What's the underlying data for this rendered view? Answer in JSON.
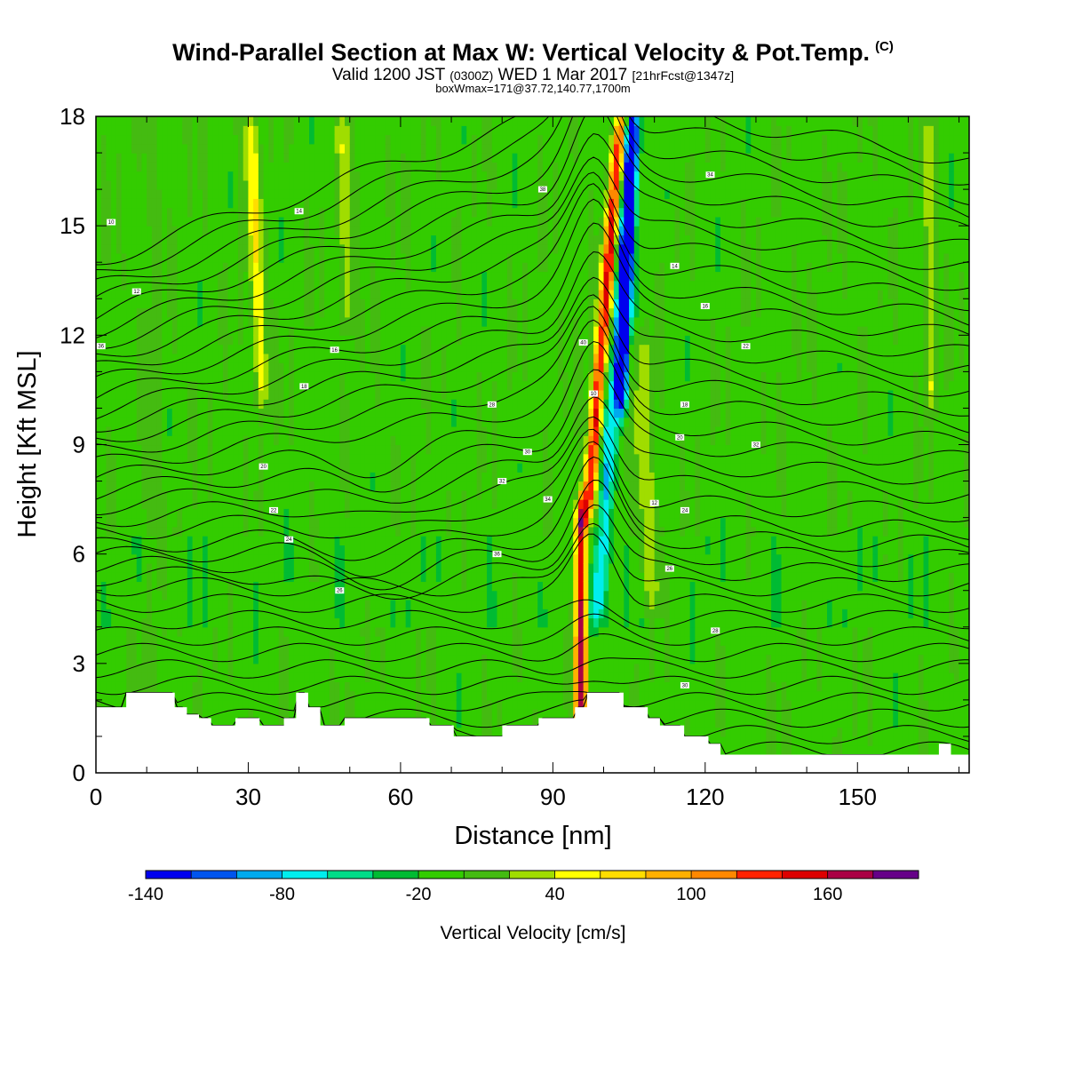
{
  "header": {
    "title": "Wind-Parallel Section at Max W: Vertical Velocity & Pot.Temp.",
    "copyright": "(C)",
    "valid_prefix": "Valid 1200 JST",
    "valid_utc": "(0300Z)",
    "valid_date": "WED 1 Mar 2017",
    "forecast": "[21hrFcst@1347z]",
    "box_info": "boxWmax=171@37.72,140.77,1700m"
  },
  "chart_data": {
    "type": "heatmap",
    "xlabel": "Distance [nm]",
    "ylabel": "Height [Kft MSL]",
    "xlim": [
      0,
      172
    ],
    "ylim": [
      0,
      18
    ],
    "xticks": [
      0,
      30,
      60,
      90,
      120,
      150
    ],
    "yticks": [
      0,
      3,
      6,
      9,
      12,
      15,
      18
    ],
    "colorbar": {
      "title": "Vertical Velocity [cm/s]",
      "levels": [
        -140,
        -120,
        -100,
        -80,
        -60,
        -40,
        -20,
        0,
        20,
        40,
        60,
        80,
        100,
        120,
        140,
        160,
        180
      ],
      "colors": [
        "#0000ee",
        "#0055ee",
        "#00aaee",
        "#00eeee",
        "#00dd88",
        "#00bb33",
        "#33cc00",
        "#44bb11",
        "#a0dd00",
        "#ffff00",
        "#ffdd00",
        "#ffb000",
        "#ff8800",
        "#ff2200",
        "#dd0000",
        "#aa0044",
        "#660088"
      ],
      "labels": [
        -140,
        -80,
        -20,
        40,
        100,
        160
      ]
    },
    "terrain_kft": [
      1.8,
      1.8,
      1.8,
      2.2,
      2.2,
      2.2,
      2.2,
      1.8,
      1.6,
      1.5,
      1.3,
      1.3,
      1.5,
      1.5,
      1.3,
      1.3,
      1.5,
      2.2,
      1.8,
      1.3,
      1.3,
      1.5,
      1.5,
      1.5,
      1.5,
      1.5,
      1.5,
      1.5,
      1.3,
      1.3,
      1.0,
      1.0,
      1.0,
      1.0,
      1.3,
      1.3,
      1.3,
      1.5,
      1.5,
      1.5,
      1.8,
      2.2,
      2.2,
      2.2,
      1.8,
      1.8,
      1.5,
      1.3,
      1.3,
      1.0,
      1.0,
      0.8,
      0.5,
      0.5,
      0.5,
      0.5,
      0.5,
      0.5,
      0.5,
      0.5,
      0.5,
      0.5,
      0.5,
      0.5,
      0.5,
      0.5,
      0.5,
      0.5,
      0.5,
      0.5,
      0.8,
      0.5,
      0.5
    ],
    "velocity_features": [
      {
        "x": 95.5,
        "z0": 0.0,
        "z1": 7.5,
        "slope": 0.0,
        "w": 170,
        "width": 1.2
      },
      {
        "x": 96.8,
        "z0": 7.0,
        "z1": 18.0,
        "slope": 0.6,
        "w": 150,
        "width": 1.3
      },
      {
        "x": 98.5,
        "z0": 4.0,
        "z1": 18.0,
        "slope": 0.55,
        "w": -70,
        "width": 1.6
      },
      {
        "x": 103.5,
        "z0": 10.0,
        "z1": 18.0,
        "slope": 0.25,
        "w": -140,
        "width": 1.2
      },
      {
        "x": 109.5,
        "z0": 4.5,
        "z1": 12.0,
        "slope": -0.3,
        "w": 40,
        "width": 2.2
      },
      {
        "x": 33.0,
        "z0": 10.0,
        "z1": 18.0,
        "slope": -0.35,
        "w": 55,
        "width": 1.6
      },
      {
        "x": 50.0,
        "z0": 12.0,
        "z1": 18.0,
        "slope": -0.2,
        "w": 40,
        "width": 1.4
      },
      {
        "x": 164.5,
        "z0": 10.0,
        "z1": 18.0,
        "slope": 0.0,
        "w": 40,
        "width": 1.2
      },
      {
        "x": 11.0,
        "z0": 0.0,
        "z1": 18.0,
        "slope": 0.0,
        "w": 15,
        "width": 1.8
      }
    ],
    "theta_contours": {
      "surface_spacing_kft": 0.45,
      "upper_spacing_kft": 0.55,
      "labels": [
        "10",
        "12",
        "14",
        "16",
        "18",
        "20",
        "22",
        "24",
        "26",
        "28",
        "30",
        "32",
        "34",
        "36",
        "38",
        "40"
      ]
    }
  }
}
